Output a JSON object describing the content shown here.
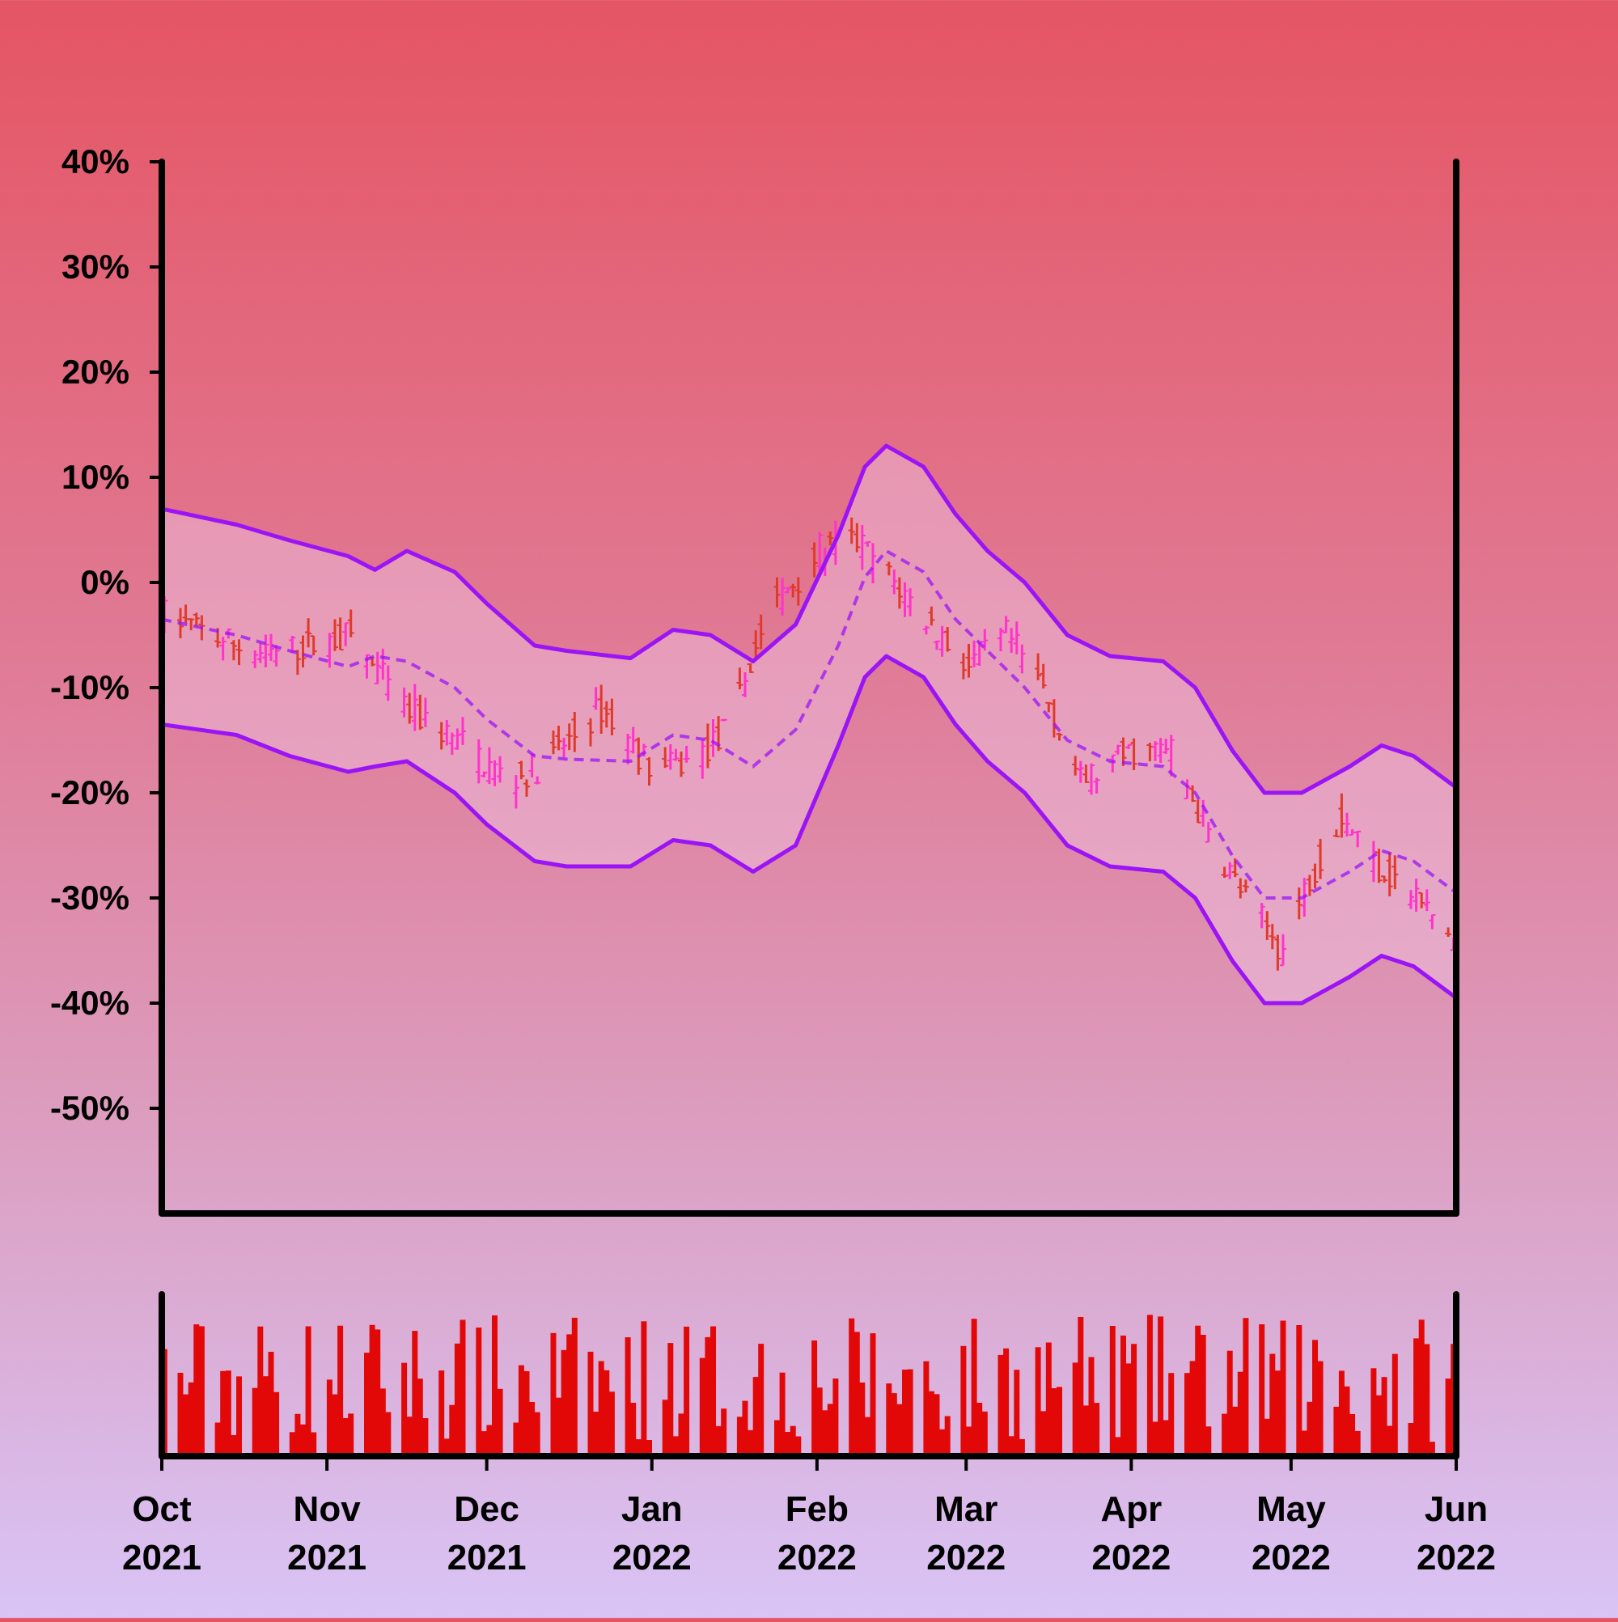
{
  "chart_data": [
    {
      "type": "ohlc",
      "name": "price-panel",
      "y_unit": "%",
      "ylim": [
        -60,
        40
      ],
      "y_ticks": [
        40,
        30,
        20,
        10,
        0,
        -10,
        -20,
        -30,
        -40,
        -50
      ],
      "y_tick_labels": [
        "40%",
        "30%",
        "20%",
        "10%",
        "0%",
        "-10%",
        "-20%",
        "-30%",
        "-40%",
        "-50%"
      ],
      "xlim": [
        "2021-10-01",
        "2022-06-01"
      ],
      "x_ticks": [
        "2021-10-01",
        "2021-11-01",
        "2021-12-01",
        "2022-01-01",
        "2022-02-01",
        "2022-03-01",
        "2022-04-01",
        "2022-05-01",
        "2022-06-01"
      ],
      "x_tick_labels": [
        {
          "month": "Oct",
          "year": "2021"
        },
        {
          "month": "Nov",
          "year": "2021"
        },
        {
          "month": "Dec",
          "year": "2021"
        },
        {
          "month": "Jan",
          "year": "2022"
        },
        {
          "month": "Feb",
          "year": "2022"
        },
        {
          "month": "Mar",
          "year": "2022"
        },
        {
          "month": "Apr",
          "year": "2022"
        },
        {
          "month": "May",
          "year": "2022"
        },
        {
          "month": "Jun",
          "year": "2022"
        }
      ],
      "price_path": [
        {
          "x": "2021-10-01",
          "y": -3
        },
        {
          "x": "2021-10-10",
          "y": -5
        },
        {
          "x": "2021-10-20",
          "y": -7
        },
        {
          "x": "2021-10-28",
          "y": -6
        },
        {
          "x": "2021-11-05",
          "y": -5
        },
        {
          "x": "2021-11-15",
          "y": -12
        },
        {
          "x": "2021-11-25",
          "y": -15
        },
        {
          "x": "2021-12-05",
          "y": -19
        },
        {
          "x": "2021-12-12",
          "y": -17
        },
        {
          "x": "2021-12-22",
          "y": -12
        },
        {
          "x": "2022-01-01",
          "y": -18
        },
        {
          "x": "2022-01-08",
          "y": -17
        },
        {
          "x": "2022-01-15",
          "y": -14
        },
        {
          "x": "2022-01-22",
          "y": -3
        },
        {
          "x": "2022-02-01",
          "y": 3
        },
        {
          "x": "2022-02-08",
          "y": 4
        },
        {
          "x": "2022-02-15",
          "y": 0
        },
        {
          "x": "2022-02-22",
          "y": -4
        },
        {
          "x": "2022-03-01",
          "y": -8
        },
        {
          "x": "2022-03-08",
          "y": -5
        },
        {
          "x": "2022-03-15",
          "y": -10
        },
        {
          "x": "2022-03-22",
          "y": -19
        },
        {
          "x": "2022-04-01",
          "y": -16
        },
        {
          "x": "2022-04-08",
          "y": -16
        },
        {
          "x": "2022-04-15",
          "y": -24
        },
        {
          "x": "2022-04-22",
          "y": -30
        },
        {
          "x": "2022-04-29",
          "y": -35
        },
        {
          "x": "2022-05-04",
          "y": -28
        },
        {
          "x": "2022-05-10",
          "y": -22
        },
        {
          "x": "2022-05-17",
          "y": -27
        },
        {
          "x": "2022-05-24",
          "y": -30
        },
        {
          "x": "2022-05-31",
          "y": -34
        }
      ],
      "bar_noise": 3,
      "candle_colors": {
        "up": "#ff33cc",
        "down": "#e03a2a"
      },
      "overlays": {
        "upper_band": [
          {
            "x": "2021-10-01",
            "y": 7
          },
          {
            "x": "2021-10-15",
            "y": 5.5
          },
          {
            "x": "2021-10-25",
            "y": 4
          },
          {
            "x": "2021-11-05",
            "y": 2.5
          },
          {
            "x": "2021-11-10",
            "y": 1.2
          },
          {
            "x": "2021-11-16",
            "y": 3
          },
          {
            "x": "2021-11-25",
            "y": 1
          },
          {
            "x": "2021-12-01",
            "y": -2
          },
          {
            "x": "2021-12-10",
            "y": -6
          },
          {
            "x": "2021-12-16",
            "y": -6.5
          },
          {
            "x": "2021-12-28",
            "y": -7.2
          },
          {
            "x": "2022-01-05",
            "y": -4.5
          },
          {
            "x": "2022-01-12",
            "y": -5
          },
          {
            "x": "2022-01-20",
            "y": -7.5
          },
          {
            "x": "2022-01-28",
            "y": -4
          },
          {
            "x": "2022-02-05",
            "y": 4.5
          },
          {
            "x": "2022-02-10",
            "y": 11
          },
          {
            "x": "2022-02-14",
            "y": 13
          },
          {
            "x": "2022-02-21",
            "y": 11
          },
          {
            "x": "2022-02-27",
            "y": 6.5
          },
          {
            "x": "2022-03-05",
            "y": 3
          },
          {
            "x": "2022-03-12",
            "y": 0
          },
          {
            "x": "2022-03-20",
            "y": -5
          },
          {
            "x": "2022-03-28",
            "y": -7
          },
          {
            "x": "2022-04-07",
            "y": -7.5
          },
          {
            "x": "2022-04-13",
            "y": -10
          },
          {
            "x": "2022-04-20",
            "y": -16
          },
          {
            "x": "2022-04-26",
            "y": -20
          },
          {
            "x": "2022-05-03",
            "y": -20
          },
          {
            "x": "2022-05-12",
            "y": -17.5
          },
          {
            "x": "2022-05-18",
            "y": -15.5
          },
          {
            "x": "2022-05-24",
            "y": -16.5
          },
          {
            "x": "2022-06-01",
            "y": -19.5
          }
        ],
        "middle_band": [
          {
            "x": "2021-10-01",
            "y": -3.5
          },
          {
            "x": "2021-10-15",
            "y": -5
          },
          {
            "x": "2021-10-25",
            "y": -6.5
          },
          {
            "x": "2021-11-05",
            "y": -8
          },
          {
            "x": "2021-11-10",
            "y": -7
          },
          {
            "x": "2021-11-16",
            "y": -7.5
          },
          {
            "x": "2021-11-25",
            "y": -10
          },
          {
            "x": "2021-12-01",
            "y": -13
          },
          {
            "x": "2021-12-10",
            "y": -16.5
          },
          {
            "x": "2021-12-16",
            "y": -16.8
          },
          {
            "x": "2021-12-28",
            "y": -17
          },
          {
            "x": "2022-01-05",
            "y": -14.5
          },
          {
            "x": "2022-01-12",
            "y": -15
          },
          {
            "x": "2022-01-20",
            "y": -17.5
          },
          {
            "x": "2022-01-28",
            "y": -14
          },
          {
            "x": "2022-02-05",
            "y": -6
          },
          {
            "x": "2022-02-10",
            "y": 0.5
          },
          {
            "x": "2022-02-14",
            "y": 3
          },
          {
            "x": "2022-02-21",
            "y": 1
          },
          {
            "x": "2022-02-27",
            "y": -3.5
          },
          {
            "x": "2022-03-05",
            "y": -6.5
          }
        ],
        "lower_band": [
          {
            "x": "2021-10-01",
            "y": -13.5
          },
          {
            "x": "2021-10-15",
            "y": -14.5
          },
          {
            "x": "2021-10-25",
            "y": -16.5
          },
          {
            "x": "2021-11-05",
            "y": -18
          },
          {
            "x": "2021-11-10",
            "y": -17.5
          },
          {
            "x": "2021-11-16",
            "y": -17
          },
          {
            "x": "2021-11-25",
            "y": -20
          },
          {
            "x": "2021-12-01",
            "y": -23
          },
          {
            "x": "2021-12-10",
            "y": -26.5
          },
          {
            "x": "2021-12-16",
            "y": -27
          },
          {
            "x": "2021-12-28",
            "y": -27
          },
          {
            "x": "2022-01-05",
            "y": -24.5
          },
          {
            "x": "2022-01-12",
            "y": -25
          },
          {
            "x": "2022-01-20",
            "y": -27.5
          },
          {
            "x": "2022-01-28",
            "y": -25
          }
        ]
      },
      "colors": {
        "band_line": "#9b14f5",
        "band_fill": "#f0c8e6",
        "axis": "#000000"
      },
      "grid": false
    },
    {
      "type": "bar",
      "name": "volume-panel",
      "color": "#e30808"
    }
  ]
}
